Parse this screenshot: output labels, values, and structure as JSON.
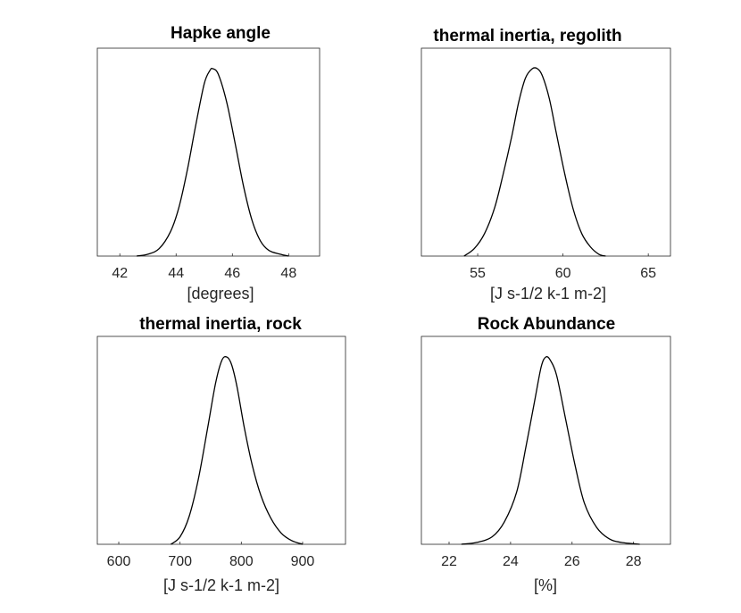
{
  "figure": {
    "colors": {
      "background": "#ffffff",
      "curve": "#000000",
      "axis": "#262626"
    }
  },
  "chart_data": [
    {
      "type": "line",
      "title": "Hapke angle",
      "xlabel": "[degrees]",
      "ylabel": "",
      "xlim": [
        41.2,
        49.1
      ],
      "xticks": [
        42,
        44,
        46,
        48
      ],
      "yticks": [],
      "grid": false,
      "legend": "none",
      "series": [
        {
          "x": [
            42.6,
            43.0,
            43.4,
            43.8,
            44.1,
            44.4,
            44.7,
            45.0,
            45.2,
            45.3,
            45.5,
            45.8,
            46.1,
            46.4,
            46.7,
            47.0,
            47.3,
            47.7,
            48.0
          ],
          "y": [
            0.0,
            0.01,
            0.04,
            0.13,
            0.26,
            0.46,
            0.7,
            0.92,
            0.99,
            1.0,
            0.97,
            0.82,
            0.6,
            0.37,
            0.19,
            0.08,
            0.03,
            0.01,
            0.0
          ]
        }
      ]
    },
    {
      "type": "line",
      "title": "thermal inertia, regolith",
      "xlabel": "[J s-1/2 k-1 m-2]",
      "ylabel": "",
      "xlim": [
        51.7,
        66.3
      ],
      "xticks": [
        55,
        60,
        65
      ],
      "yticks": [],
      "grid": false,
      "legend": "none",
      "series": [
        {
          "x": [
            54.2,
            54.8,
            55.4,
            56.0,
            56.5,
            57.0,
            57.4,
            57.8,
            58.2,
            58.5,
            58.8,
            59.2,
            59.6,
            60.1,
            60.6,
            61.1,
            61.6,
            62.1,
            62.5
          ],
          "y": [
            0.0,
            0.04,
            0.12,
            0.26,
            0.44,
            0.64,
            0.82,
            0.95,
            1.0,
            1.0,
            0.96,
            0.84,
            0.66,
            0.44,
            0.25,
            0.12,
            0.05,
            0.01,
            0.0
          ]
        }
      ]
    },
    {
      "type": "line",
      "title": "thermal inertia, rock",
      "xlabel": "[J s-1/2 k-1 m-2]",
      "ylabel": "",
      "xlim": [
        565,
        970
      ],
      "xticks": [
        600,
        700,
        800,
        900
      ],
      "yticks": [],
      "grid": false,
      "legend": "none",
      "series": [
        {
          "x": [
            685,
            700,
            715,
            730,
            745,
            758,
            768,
            776,
            784,
            793,
            805,
            818,
            832,
            848,
            865,
            882,
            900
          ],
          "y": [
            0.0,
            0.04,
            0.15,
            0.35,
            0.62,
            0.86,
            0.98,
            1.0,
            0.96,
            0.84,
            0.62,
            0.42,
            0.26,
            0.14,
            0.06,
            0.02,
            0.0
          ]
        }
      ]
    },
    {
      "type": "line",
      "title": "Rock Abundance",
      "xlabel": "[%]",
      "ylabel": "",
      "xlim": [
        21.1,
        29.2
      ],
      "xticks": [
        22,
        24,
        26,
        28
      ],
      "yticks": [],
      "grid": false,
      "legend": "none",
      "series": [
        {
          "x": [
            22.4,
            22.9,
            23.4,
            23.8,
            24.2,
            24.5,
            24.8,
            25.0,
            25.15,
            25.3,
            25.5,
            25.8,
            26.1,
            26.4,
            26.8,
            27.2,
            27.6,
            28.2
          ],
          "y": [
            0.0,
            0.01,
            0.04,
            0.12,
            0.28,
            0.52,
            0.78,
            0.95,
            1.0,
            0.98,
            0.9,
            0.66,
            0.42,
            0.22,
            0.09,
            0.03,
            0.01,
            0.0
          ]
        }
      ]
    }
  ]
}
